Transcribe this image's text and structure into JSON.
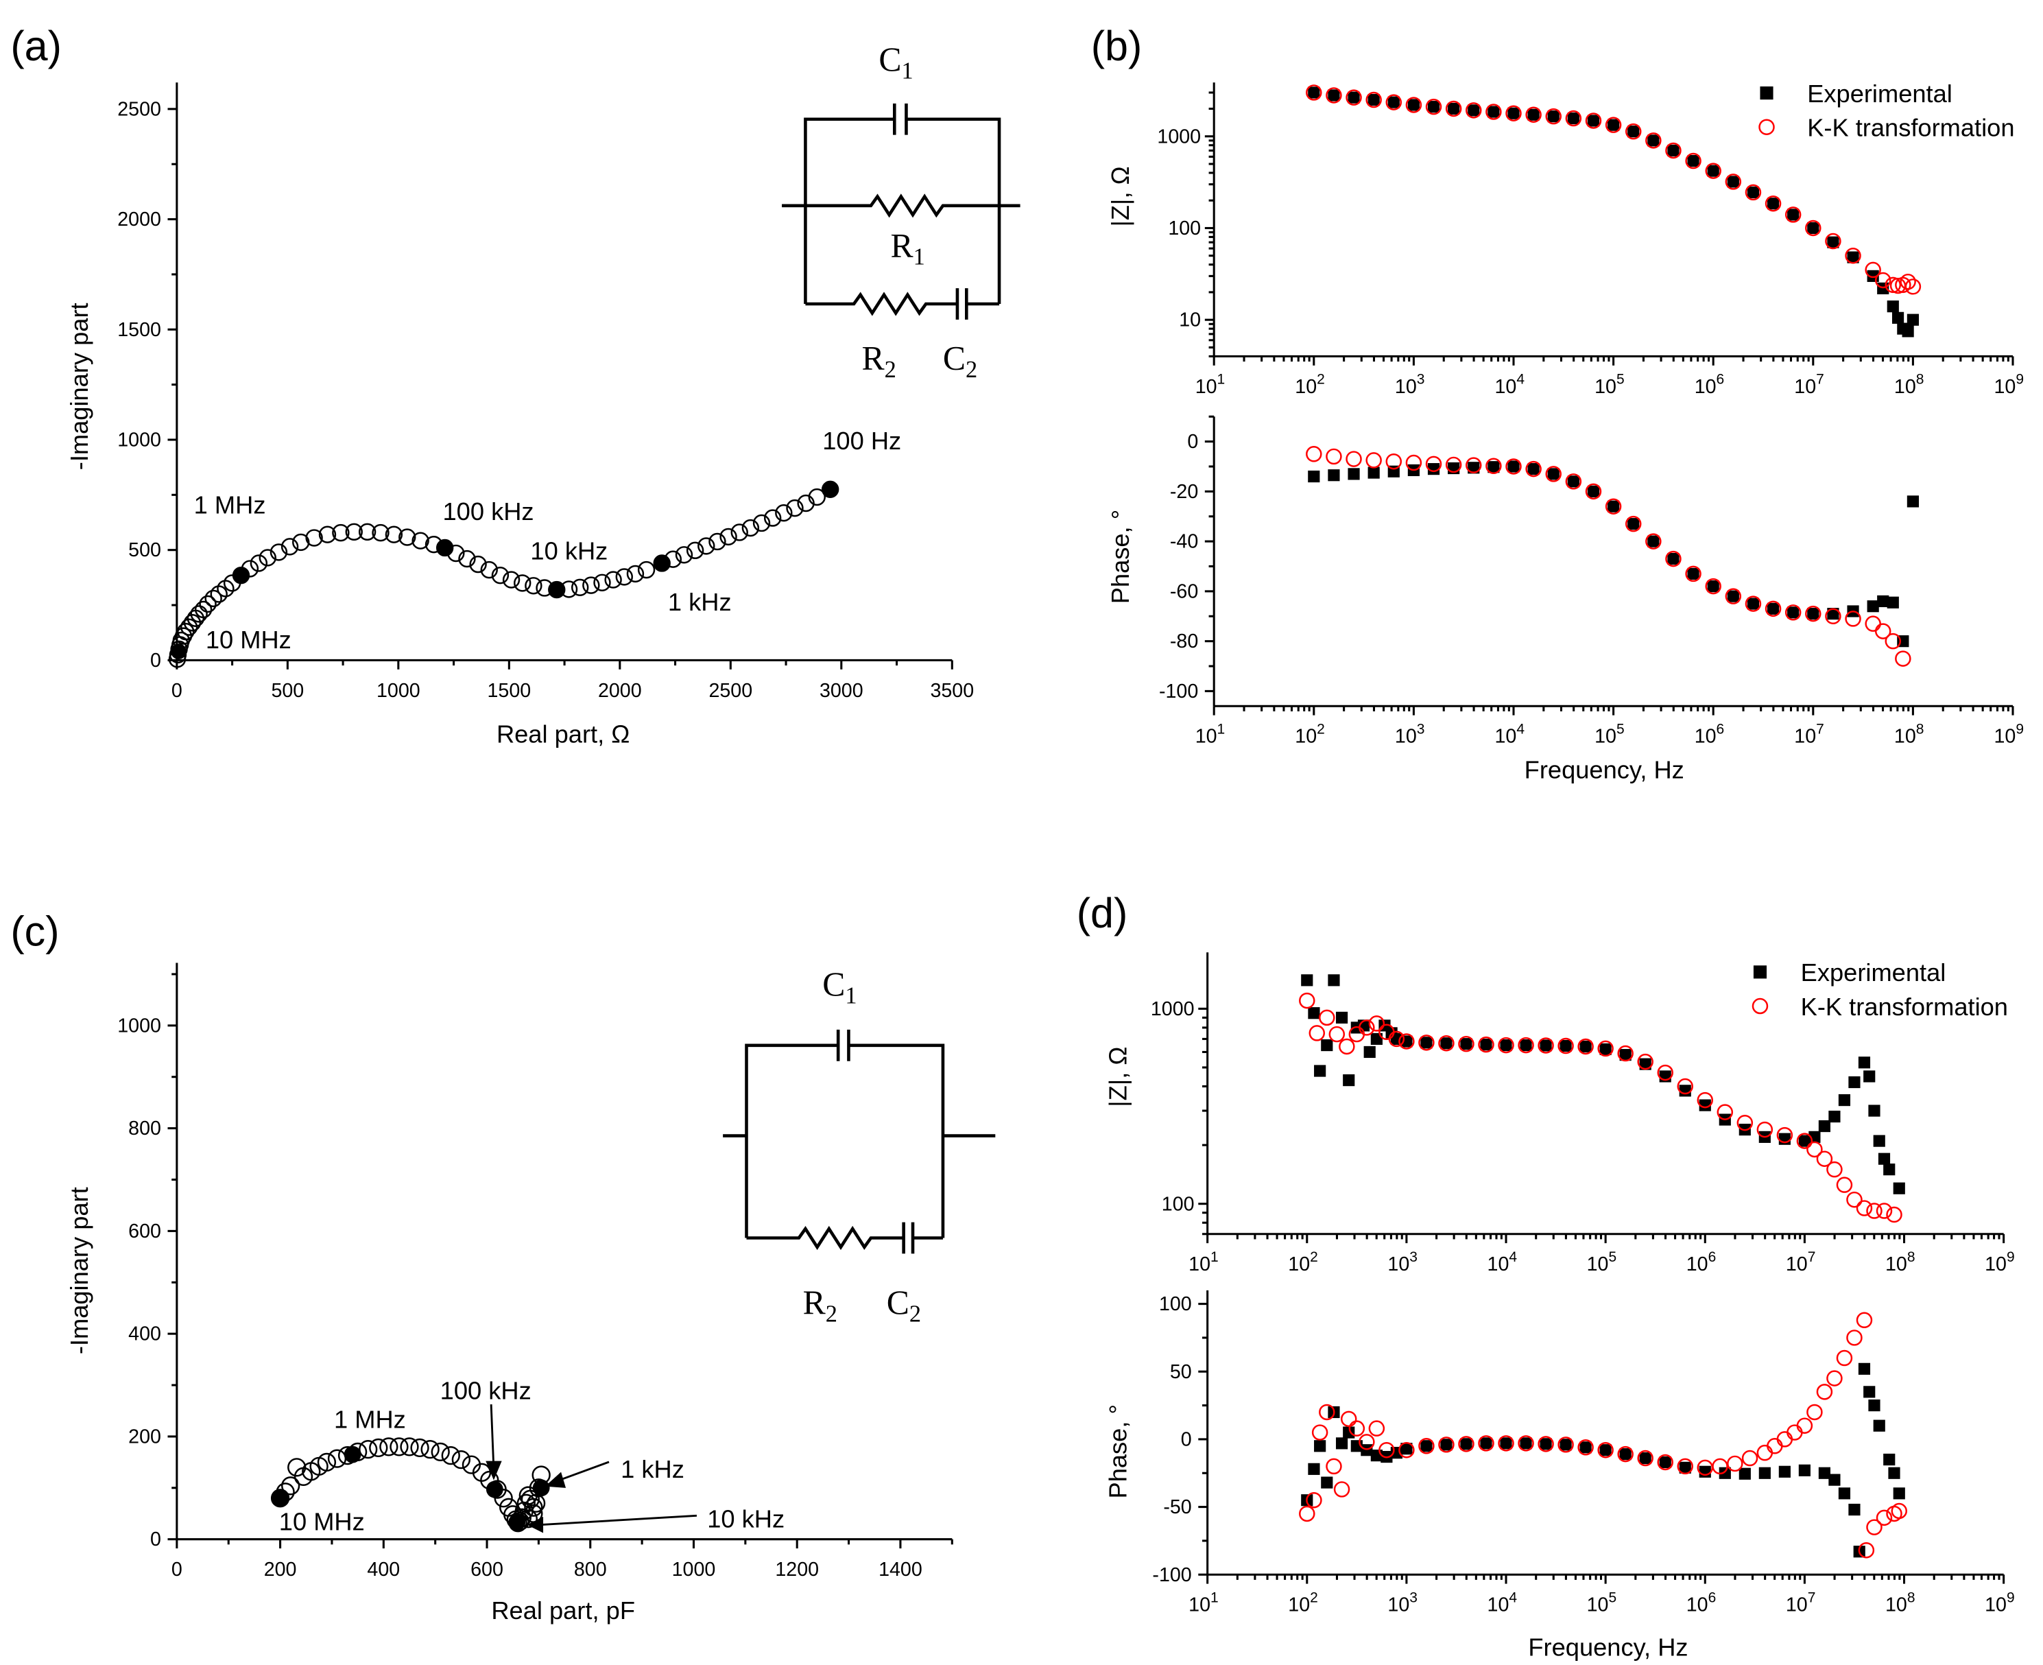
{
  "colors": {
    "experimental": "#000000",
    "kk": "#ff0000",
    "axis": "#000000"
  },
  "chart_data": [
    {
      "id": "a",
      "panel_label": "(a)",
      "type": "scatter",
      "xlabel": "Real part, Ω",
      "ylabel": "-Imaginary part",
      "xlim": [
        0,
        3500
      ],
      "ylim": [
        0,
        2620
      ],
      "xticks": [
        0,
        500,
        1000,
        1500,
        2000,
        2500,
        3000,
        3500
      ],
      "yticks": [
        0,
        500,
        1000,
        1500,
        2000,
        2500
      ],
      "x": [
        2,
        5,
        10,
        15,
        20,
        30,
        40,
        55,
        70,
        85,
        100,
        120,
        140,
        165,
        190,
        220,
        250,
        290,
        330,
        370,
        410,
        460,
        510,
        560,
        620,
        680,
        740,
        800,
        860,
        920,
        980,
        1040,
        1100,
        1160,
        1210,
        1260,
        1310,
        1360,
        1410,
        1460,
        1510,
        1560,
        1610,
        1660,
        1715,
        1770,
        1820,
        1870,
        1920,
        1970,
        2020,
        2070,
        2120,
        2190,
        2240,
        2290,
        2340,
        2390,
        2440,
        2490,
        2540,
        2590,
        2640,
        2690,
        2740,
        2790,
        2840,
        2890,
        2950
      ],
      "y": [
        5,
        25,
        50,
        70,
        90,
        110,
        130,
        150,
        170,
        190,
        210,
        230,
        255,
        280,
        300,
        325,
        350,
        385,
        415,
        440,
        465,
        490,
        515,
        535,
        555,
        570,
        578,
        582,
        582,
        578,
        570,
        558,
        542,
        525,
        510,
        485,
        460,
        435,
        410,
        385,
        365,
        350,
        338,
        328,
        320,
        322,
        330,
        340,
        352,
        365,
        378,
        392,
        410,
        440,
        458,
        478,
        498,
        518,
        538,
        560,
        580,
        600,
        622,
        645,
        668,
        690,
        712,
        740,
        775
      ],
      "markers": [
        {
          "label": "10 MHz",
          "x": 8,
          "y": 40
        },
        {
          "label": "1 MHz",
          "x": 290,
          "y": 385
        },
        {
          "label": "100 kHz",
          "x": 1210,
          "y": 510
        },
        {
          "label": "10 kHz",
          "x": 1715,
          "y": 320
        },
        {
          "label": "1 kHz",
          "x": 2190,
          "y": 440
        },
        {
          "label": "100 Hz",
          "x": 2950,
          "y": 775
        }
      ],
      "circuit": {
        "C1": {
          "letter": "C",
          "sub": "1"
        },
        "R1": {
          "letter": "R",
          "sub": "1"
        },
        "R2": {
          "letter": "R",
          "sub": "2"
        },
        "C2": {
          "letter": "C",
          "sub": "2"
        }
      }
    },
    {
      "id": "b",
      "panel_label": "(b)",
      "type": "scatter",
      "xlabel": "Frequency, Hz",
      "x_scale": "log",
      "xlim_exponents": [
        1,
        9
      ],
      "xtick_base": "10",
      "xtick_exponents": [
        "1",
        "2",
        "3",
        "4",
        "5",
        "6",
        "7",
        "8",
        "9"
      ],
      "legend": {
        "position": "top-right",
        "experimental": "Experimental",
        "kk": "K-K transformation"
      },
      "magnitude": {
        "ylabel": "|Z|, Ω",
        "y_scale": "log",
        "ylim": [
          4,
          3860
        ],
        "yticks": [
          10,
          100,
          1000
        ],
        "ytick_labels": [
          "10",
          "100",
          "1000"
        ],
        "experimental": {
          "log10_f": [
            2.0,
            2.2,
            2.4,
            2.6,
            2.8,
            3.0,
            3.2,
            3.4,
            3.6,
            3.8,
            4.0,
            4.2,
            4.4,
            4.6,
            4.8,
            5.0,
            5.2,
            5.4,
            5.6,
            5.8,
            6.0,
            6.2,
            6.4,
            6.6,
            6.8,
            7.0,
            7.2,
            7.4,
            7.6,
            7.7,
            7.8,
            7.85,
            7.9,
            7.95,
            8.0
          ],
          "value": [
            3000,
            2800,
            2650,
            2500,
            2350,
            2200,
            2100,
            2000,
            1920,
            1850,
            1780,
            1720,
            1650,
            1570,
            1480,
            1330,
            1130,
            900,
            700,
            540,
            420,
            320,
            245,
            185,
            140,
            100,
            70,
            48,
            30,
            22,
            14,
            10.5,
            8,
            7.5,
            10
          ]
        },
        "kk": {
          "log10_f": [
            2.0,
            2.2,
            2.4,
            2.6,
            2.8,
            3.0,
            3.2,
            3.4,
            3.6,
            3.8,
            4.0,
            4.2,
            4.4,
            4.6,
            4.8,
            5.0,
            5.2,
            5.4,
            5.6,
            5.8,
            6.0,
            6.2,
            6.4,
            6.6,
            6.8,
            7.0,
            7.2,
            7.4,
            7.6,
            7.7,
            7.8,
            7.85,
            7.9,
            7.95,
            8.0
          ],
          "value": [
            3000,
            2800,
            2650,
            2500,
            2350,
            2200,
            2100,
            2000,
            1920,
            1850,
            1780,
            1720,
            1650,
            1570,
            1480,
            1330,
            1130,
            900,
            700,
            540,
            420,
            320,
            245,
            185,
            140,
            100,
            72,
            50,
            35,
            27,
            24,
            23.5,
            24,
            26,
            23
          ]
        }
      },
      "phase": {
        "ylabel": "Phase, °",
        "ylim": [
          -106,
          10
        ],
        "yticks": [
          0,
          -20,
          -40,
          -60,
          -80,
          -100
        ],
        "experimental": {
          "log10_f": [
            2.0,
            2.2,
            2.4,
            2.6,
            2.8,
            3.0,
            3.2,
            3.4,
            3.6,
            3.8,
            4.0,
            4.2,
            4.4,
            4.6,
            4.8,
            5.0,
            5.2,
            5.4,
            5.6,
            5.8,
            6.0,
            6.2,
            6.4,
            6.6,
            6.8,
            7.0,
            7.2,
            7.4,
            7.6,
            7.7,
            7.8,
            7.9,
            8.0
          ],
          "value": [
            -14,
            -13.5,
            -13,
            -12.5,
            -12,
            -11.5,
            -11,
            -10.7,
            -10.5,
            -10.2,
            -10,
            -11,
            -13,
            -16,
            -20,
            -26,
            -33,
            -40,
            -47,
            -53,
            -58,
            -62,
            -65,
            -67,
            -68.5,
            -69,
            -69,
            -68,
            -66,
            -64,
            -64.5,
            -80,
            -24
          ]
        },
        "kk": {
          "log10_f": [
            2.0,
            2.2,
            2.4,
            2.6,
            2.8,
            3.0,
            3.2,
            3.4,
            3.6,
            3.8,
            4.0,
            4.2,
            4.4,
            4.6,
            4.8,
            5.0,
            5.2,
            5.4,
            5.6,
            5.8,
            6.0,
            6.2,
            6.4,
            6.6,
            6.8,
            7.0,
            7.2,
            7.4,
            7.6,
            7.7,
            7.8,
            7.9
          ],
          "value": [
            -5,
            -6,
            -7,
            -7.5,
            -8,
            -8.5,
            -9,
            -9.3,
            -9.5,
            -9.8,
            -10,
            -11,
            -13,
            -16,
            -20,
            -26,
            -33,
            -40,
            -47,
            -53,
            -58,
            -62,
            -65,
            -67,
            -68.5,
            -69,
            -70,
            -71,
            -73,
            -76,
            -80,
            -87
          ]
        }
      }
    },
    {
      "id": "c",
      "panel_label": "(c)",
      "type": "scatter",
      "xlabel": "Real part, pF",
      "ylabel": "-Imaginary part",
      "xlim": [
        0,
        1500
      ],
      "ylim": [
        0,
        1122
      ],
      "xticks": [
        0,
        200,
        400,
        600,
        800,
        1000,
        1200,
        1400
      ],
      "yticks": [
        0,
        200,
        400,
        600,
        800,
        1000
      ],
      "x": [
        200,
        210,
        220,
        232,
        245,
        260,
        275,
        290,
        310,
        330,
        350,
        370,
        390,
        410,
        430,
        450,
        470,
        490,
        510,
        530,
        550,
        570,
        590,
        605,
        620,
        632,
        642,
        650,
        656,
        660,
        664,
        668,
        672,
        676,
        680,
        684,
        690,
        695,
        700,
        705,
        690,
        680
      ],
      "y": [
        80,
        92,
        104,
        140,
        122,
        132,
        142,
        150,
        157,
        163,
        170,
        175,
        178,
        180,
        180,
        180,
        178,
        175,
        170,
        163,
        155,
        145,
        130,
        115,
        97,
        80,
        62,
        48,
        38,
        32,
        35,
        42,
        55,
        70,
        85,
        78,
        62,
        70,
        100,
        125,
        50,
        40
      ],
      "markers": [
        {
          "label": "10 MHz",
          "x": 200,
          "y": 80
        },
        {
          "label": "1 MHz",
          "x": 340,
          "y": 165
        },
        {
          "label": "100 kHz",
          "x": 615,
          "y": 97
        },
        {
          "label": "10 kHz",
          "x": 658,
          "y": 33
        },
        {
          "label": "1 kHz",
          "x": 705,
          "y": 100
        }
      ],
      "circuit": {
        "C1": {
          "letter": "C",
          "sub": "1"
        },
        "R2": {
          "letter": "R",
          "sub": "2"
        },
        "C2": {
          "letter": "C",
          "sub": "2"
        }
      }
    },
    {
      "id": "d",
      "panel_label": "(d)",
      "type": "scatter",
      "xlabel": "Frequency, Hz",
      "x_scale": "log",
      "xlim_exponents": [
        1,
        9
      ],
      "xtick_base": "10",
      "xtick_exponents": [
        "1",
        "2",
        "3",
        "4",
        "5",
        "6",
        "7",
        "8",
        "9"
      ],
      "legend": {
        "position": "top-right",
        "experimental": "Experimental",
        "kk": "K-K transformation"
      },
      "magnitude": {
        "ylabel": "|Z|, Ω",
        "y_scale": "log",
        "ylim": [
          70,
          1945
        ],
        "yticks": [
          100,
          1000
        ],
        "ytick_labels": [
          "100",
          "1000"
        ],
        "experimental": {
          "log10_f": [
            2.0,
            2.07,
            2.13,
            2.2,
            2.27,
            2.35,
            2.42,
            2.5,
            2.57,
            2.63,
            2.7,
            2.78,
            2.85,
            2.9,
            3.0,
            3.2,
            3.4,
            3.6,
            3.8,
            4.0,
            4.2,
            4.4,
            4.6,
            4.8,
            5.0,
            5.2,
            5.4,
            5.6,
            5.8,
            6.0,
            6.2,
            6.4,
            6.6,
            6.8,
            7.0,
            7.1,
            7.2,
            7.3,
            7.4,
            7.5,
            7.6,
            7.65,
            7.7,
            7.75,
            7.8,
            7.85,
            7.95
          ],
          "value": [
            1400,
            950,
            480,
            650,
            1400,
            900,
            430,
            800,
            820,
            600,
            700,
            820,
            750,
            700,
            680,
            670,
            665,
            660,
            655,
            650,
            650,
            648,
            645,
            640,
            620,
            580,
            520,
            450,
            380,
            320,
            270,
            240,
            220,
            215,
            210,
            220,
            250,
            280,
            340,
            420,
            530,
            450,
            300,
            210,
            170,
            150,
            120
          ]
        },
        "kk": {
          "log10_f": [
            2.0,
            2.1,
            2.2,
            2.3,
            2.4,
            2.5,
            2.6,
            2.7,
            2.8,
            2.9,
            3.0,
            3.2,
            3.4,
            3.6,
            3.8,
            4.0,
            4.2,
            4.4,
            4.6,
            4.8,
            5.0,
            5.2,
            5.4,
            5.6,
            5.8,
            6.0,
            6.2,
            6.4,
            6.6,
            6.8,
            7.0,
            7.1,
            7.2,
            7.3,
            7.4,
            7.5,
            7.6,
            7.7,
            7.8,
            7.9
          ],
          "value": [
            1100,
            750,
            900,
            740,
            640,
            740,
            800,
            840,
            760,
            700,
            680,
            670,
            665,
            660,
            655,
            650,
            650,
            648,
            645,
            640,
            625,
            590,
            535,
            470,
            400,
            340,
            295,
            260,
            240,
            225,
            210,
            190,
            170,
            150,
            125,
            105,
            95,
            92,
            92,
            88
          ]
        }
      },
      "phase": {
        "ylabel": "Phase, °",
        "ylim": [
          -100,
          110
        ],
        "yticks": [
          100,
          50,
          0,
          -50,
          -100
        ],
        "experimental": {
          "log10_f": [
            2.0,
            2.07,
            2.13,
            2.2,
            2.27,
            2.35,
            2.42,
            2.5,
            2.6,
            2.7,
            2.8,
            2.9,
            3.0,
            3.2,
            3.4,
            3.6,
            3.8,
            4.0,
            4.2,
            4.4,
            4.6,
            4.8,
            5.0,
            5.2,
            5.4,
            5.6,
            5.8,
            6.0,
            6.2,
            6.4,
            6.6,
            6.8,
            7.0,
            7.2,
            7.3,
            7.4,
            7.5,
            7.55,
            7.6,
            7.65,
            7.7,
            7.75,
            7.85,
            7.9,
            7.95
          ],
          "value": [
            -45,
            -22,
            -5,
            -32,
            20,
            -3,
            5,
            -5,
            -8,
            -12,
            -13,
            -10,
            -7,
            -5,
            -4,
            -3.5,
            -3,
            -3,
            -3,
            -3.5,
            -4,
            -6,
            -8,
            -11,
            -14,
            -17,
            -21,
            -24,
            -25,
            -25.5,
            -25,
            -24,
            -23,
            -25,
            -30,
            -40,
            -52,
            -83,
            52,
            35,
            25,
            10,
            -15,
            -25,
            -40
          ]
        },
        "kk": {
          "log10_f": [
            2.0,
            2.07,
            2.13,
            2.2,
            2.27,
            2.35,
            2.42,
            2.5,
            2.6,
            2.7,
            2.8,
            3.0,
            3.2,
            3.4,
            3.6,
            3.8,
            4.0,
            4.2,
            4.4,
            4.6,
            4.8,
            5.0,
            5.2,
            5.4,
            5.6,
            5.8,
            6.0,
            6.15,
            6.3,
            6.45,
            6.6,
            6.7,
            6.8,
            6.9,
            7.0,
            7.1,
            7.2,
            7.3,
            7.4,
            7.5,
            7.6,
            7.62,
            7.7,
            7.8,
            7.9,
            7.95
          ],
          "value": [
            -55,
            -45,
            5,
            20,
            -20,
            -37,
            15,
            8,
            -2,
            8,
            -8,
            -8,
            -5,
            -4,
            -3.5,
            -3,
            -3,
            -3,
            -3.5,
            -4,
            -6,
            -8,
            -11,
            -14,
            -17,
            -20,
            -21,
            -20,
            -18,
            -14,
            -10,
            -5,
            0,
            5,
            10,
            20,
            35,
            45,
            60,
            75,
            88,
            -82,
            -65,
            -58,
            -55,
            -53
          ]
        }
      }
    }
  ]
}
